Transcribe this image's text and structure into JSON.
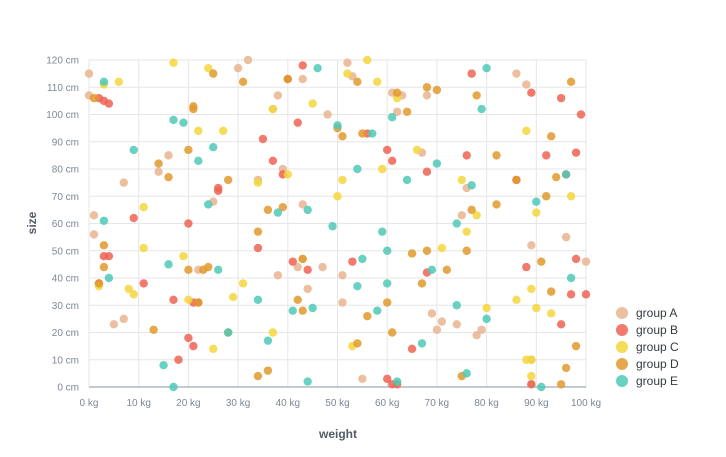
{
  "chart_data": {
    "type": "scatter",
    "title": "",
    "xlabel": "weight",
    "ylabel": "size",
    "x_unit": "kg",
    "y_unit": "cm",
    "xlim": [
      0,
      100
    ],
    "ylim": [
      0,
      120
    ],
    "x_ticks": [
      "0 kg",
      "10 kg",
      "20 kg",
      "30 kg",
      "40 kg",
      "50 kg",
      "60 kg",
      "70 kg",
      "80 kg",
      "90 kg",
      "100 kg"
    ],
    "y_ticks": [
      "0 cm",
      "10 cm",
      "20 cm",
      "30 cm",
      "40 cm",
      "50 cm",
      "60 cm",
      "70 cm",
      "80 cm",
      "90 cm",
      "100 cm",
      "110 cm",
      "120 cm"
    ],
    "grid": true,
    "legend_position": "right-bottom",
    "series": [
      {
        "name": "group A",
        "color": "#e8b48f",
        "points": [
          [
            0,
            115
          ],
          [
            0,
            107
          ],
          [
            1,
            63
          ],
          [
            1,
            56
          ],
          [
            5,
            23
          ],
          [
            7,
            25
          ],
          [
            7,
            75
          ],
          [
            14,
            79
          ],
          [
            16,
            85
          ],
          [
            22,
            43
          ],
          [
            25,
            68
          ],
          [
            30,
            117
          ],
          [
            32,
            120
          ],
          [
            34,
            76
          ],
          [
            37,
            102
          ],
          [
            38,
            107
          ],
          [
            38,
            41
          ],
          [
            39,
            80
          ],
          [
            42,
            44
          ],
          [
            43,
            67
          ],
          [
            43,
            47
          ],
          [
            43,
            113
          ],
          [
            44,
            36
          ],
          [
            47,
            44
          ],
          [
            48,
            100
          ],
          [
            51,
            31
          ],
          [
            51,
            41
          ],
          [
            52,
            119
          ],
          [
            53,
            114
          ],
          [
            55,
            3
          ],
          [
            61,
            108
          ],
          [
            62,
            101
          ],
          [
            63,
            107
          ],
          [
            67,
            86
          ],
          [
            68,
            107
          ],
          [
            69,
            27
          ],
          [
            70,
            21
          ],
          [
            71,
            24
          ],
          [
            74,
            23
          ],
          [
            75,
            63
          ],
          [
            76,
            73
          ],
          [
            78,
            19
          ],
          [
            79,
            21
          ],
          [
            86,
            115
          ],
          [
            88,
            111
          ],
          [
            89,
            1
          ],
          [
            89,
            52
          ],
          [
            89,
            10
          ],
          [
            96,
            55
          ],
          [
            100,
            46
          ]
        ]
      },
      {
        "name": "group B",
        "color": "#ee6352",
        "points": [
          [
            2,
            106
          ],
          [
            3,
            105
          ],
          [
            4,
            104
          ],
          [
            3,
            48
          ],
          [
            4,
            48
          ],
          [
            2,
            38
          ],
          [
            9,
            62
          ],
          [
            11,
            38
          ],
          [
            17,
            32
          ],
          [
            18,
            10
          ],
          [
            20,
            60
          ],
          [
            20,
            18
          ],
          [
            21,
            15
          ],
          [
            21,
            31
          ],
          [
            22,
            31
          ],
          [
            26,
            72
          ],
          [
            26,
            73
          ],
          [
            34,
            51
          ],
          [
            35,
            91
          ],
          [
            37,
            83
          ],
          [
            39,
            78
          ],
          [
            40,
            113
          ],
          [
            41,
            46
          ],
          [
            42,
            97
          ],
          [
            43,
            118
          ],
          [
            44,
            43
          ],
          [
            53,
            46
          ],
          [
            56,
            93
          ],
          [
            60,
            87
          ],
          [
            60,
            3
          ],
          [
            61,
            1
          ],
          [
            61,
            83
          ],
          [
            62,
            1
          ],
          [
            65,
            14
          ],
          [
            68,
            42
          ],
          [
            68,
            79
          ],
          [
            76,
            85
          ],
          [
            77,
            115
          ],
          [
            86,
            76
          ],
          [
            88,
            44
          ],
          [
            89,
            108
          ],
          [
            89,
            1
          ],
          [
            92,
            85
          ],
          [
            95,
            23
          ],
          [
            95,
            106
          ],
          [
            96,
            78
          ],
          [
            97,
            34
          ],
          [
            98,
            86
          ],
          [
            98,
            47
          ],
          [
            99,
            100
          ],
          [
            100,
            34
          ]
        ]
      },
      {
        "name": "group C",
        "color": "#f3d63c",
        "points": [
          [
            2,
            37
          ],
          [
            3,
            111
          ],
          [
            6,
            112
          ],
          [
            8,
            36
          ],
          [
            9,
            34
          ],
          [
            11,
            66
          ],
          [
            11,
            51
          ],
          [
            17,
            119
          ],
          [
            19,
            48
          ],
          [
            20,
            32
          ],
          [
            22,
            94
          ],
          [
            24,
            117
          ],
          [
            25,
            14
          ],
          [
            27,
            94
          ],
          [
            29,
            33
          ],
          [
            31,
            38
          ],
          [
            34,
            75
          ],
          [
            37,
            20
          ],
          [
            37,
            102
          ],
          [
            40,
            78
          ],
          [
            45,
            104
          ],
          [
            50,
            70
          ],
          [
            51,
            76
          ],
          [
            52,
            115
          ],
          [
            53,
            15
          ],
          [
            56,
            120
          ],
          [
            58,
            112
          ],
          [
            59,
            80
          ],
          [
            62,
            106
          ],
          [
            66,
            87
          ],
          [
            71,
            51
          ],
          [
            75,
            76
          ],
          [
            76,
            57
          ],
          [
            78,
            63
          ],
          [
            80,
            29
          ],
          [
            86,
            32
          ],
          [
            88,
            94
          ],
          [
            88,
            10
          ],
          [
            89,
            10
          ],
          [
            89,
            36
          ],
          [
            89,
            4
          ],
          [
            90,
            29
          ],
          [
            90,
            64
          ],
          [
            93,
            27
          ],
          [
            97,
            70
          ]
        ]
      },
      {
        "name": "group D",
        "color": "#e09a2b",
        "points": [
          [
            1,
            106
          ],
          [
            3,
            52
          ],
          [
            3,
            44
          ],
          [
            2,
            38
          ],
          [
            13,
            21
          ],
          [
            14,
            82
          ],
          [
            16,
            77
          ],
          [
            20,
            43
          ],
          [
            20,
            87
          ],
          [
            21,
            103
          ],
          [
            21,
            102
          ],
          [
            22,
            31
          ],
          [
            23,
            43
          ],
          [
            24,
            44
          ],
          [
            25,
            115
          ],
          [
            28,
            76
          ],
          [
            28,
            20
          ],
          [
            31,
            112
          ],
          [
            34,
            57
          ],
          [
            34,
            4
          ],
          [
            36,
            65
          ],
          [
            36,
            6
          ],
          [
            39,
            66
          ],
          [
            40,
            113
          ],
          [
            42,
            32
          ],
          [
            43,
            47
          ],
          [
            43,
            28
          ],
          [
            50,
            95
          ],
          [
            51,
            92
          ],
          [
            54,
            112
          ],
          [
            55,
            93
          ],
          [
            54,
            16
          ],
          [
            56,
            26
          ],
          [
            60,
            31
          ],
          [
            61,
            20
          ],
          [
            62,
            108
          ],
          [
            64,
            101
          ],
          [
            65,
            49
          ],
          [
            67,
            38
          ],
          [
            68,
            110
          ],
          [
            68,
            50
          ],
          [
            70,
            109
          ],
          [
            72,
            43
          ],
          [
            75,
            4
          ],
          [
            76,
            50
          ],
          [
            77,
            65
          ],
          [
            78,
            107
          ],
          [
            82,
            85
          ],
          [
            82,
            67
          ],
          [
            86,
            76
          ],
          [
            91,
            46
          ],
          [
            92,
            70
          ],
          [
            93,
            92
          ],
          [
            93,
            35
          ],
          [
            94,
            77
          ],
          [
            95,
            1
          ],
          [
            96,
            7
          ],
          [
            97,
            112
          ],
          [
            98,
            15
          ]
        ]
      },
      {
        "name": "group E",
        "color": "#4dc9b7",
        "points": [
          [
            3,
            112
          ],
          [
            3,
            61
          ],
          [
            4,
            40
          ],
          [
            9,
            87
          ],
          [
            15,
            8
          ],
          [
            16,
            45
          ],
          [
            17,
            98
          ],
          [
            17,
            0
          ],
          [
            19,
            97
          ],
          [
            22,
            83
          ],
          [
            24,
            67
          ],
          [
            25,
            88
          ],
          [
            26,
            43
          ],
          [
            28,
            20
          ],
          [
            34,
            32
          ],
          [
            36,
            17
          ],
          [
            38,
            64
          ],
          [
            41,
            28
          ],
          [
            44,
            65
          ],
          [
            44,
            2
          ],
          [
            45,
            29
          ],
          [
            46,
            117
          ],
          [
            49,
            59
          ],
          [
            50,
            96
          ],
          [
            54,
            37
          ],
          [
            54,
            80
          ],
          [
            55,
            47
          ],
          [
            57,
            93
          ],
          [
            58,
            28
          ],
          [
            59,
            57
          ],
          [
            60,
            50
          ],
          [
            60,
            38
          ],
          [
            61,
            99
          ],
          [
            62,
            2
          ],
          [
            64,
            76
          ],
          [
            67,
            16
          ],
          [
            69,
            43
          ],
          [
            70,
            82
          ],
          [
            74,
            60
          ],
          [
            74,
            30
          ],
          [
            76,
            5
          ],
          [
            77,
            74
          ],
          [
            79,
            102
          ],
          [
            80,
            117
          ],
          [
            80,
            25
          ],
          [
            90,
            68
          ],
          [
            91,
            0
          ],
          [
            96,
            78
          ],
          [
            97,
            40
          ]
        ]
      }
    ]
  }
}
